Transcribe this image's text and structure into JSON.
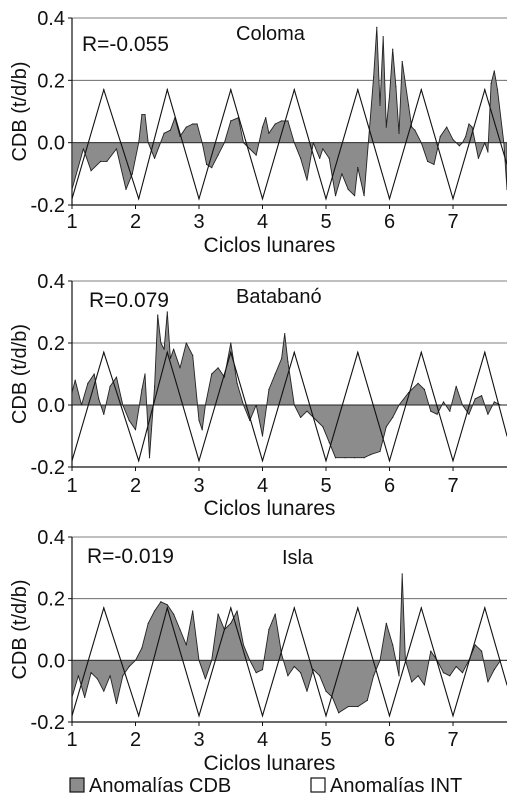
{
  "legend": {
    "cdb_label": "Anomalías CDB",
    "int_label": "Anomalías INT",
    "cdb_color": "#8c8c8c",
    "int_color": "#ffffff"
  },
  "chart_data": [
    {
      "type": "area",
      "title": "Coloma",
      "annotation": "R=-0.055",
      "xlabel": "Ciclos lunares",
      "ylabel": "CDB (t/d/b)",
      "xlim": [
        1,
        7.85
      ],
      "ylim": [
        -0.2,
        0.4
      ],
      "yticks": [
        "0.4",
        "0.2",
        "0.0",
        "-0.2"
      ],
      "xticks": [
        "1",
        "2",
        "3",
        "4",
        "5",
        "6",
        "7"
      ],
      "grid": true,
      "series": [
        {
          "role": "cdb",
          "x": [
            1.0,
            1.18,
            1.3,
            1.45,
            1.55,
            1.7,
            1.85,
            1.95,
            2.05,
            2.1,
            2.15,
            2.2,
            2.3,
            2.45,
            2.55,
            2.62,
            2.7,
            2.8,
            2.9,
            2.97,
            3.05,
            3.12,
            3.2,
            3.3,
            3.4,
            3.5,
            3.62,
            3.7,
            3.8,
            3.9,
            4.0,
            4.05,
            4.1,
            4.2,
            4.3,
            4.4,
            4.5,
            4.6,
            4.7,
            4.8,
            4.9,
            4.95,
            5.05,
            5.15,
            5.25,
            5.35,
            5.45,
            5.5,
            5.6,
            5.75,
            5.8,
            5.85,
            5.9,
            5.95,
            6.0,
            6.05,
            6.1,
            6.15,
            6.2,
            6.3,
            6.35,
            6.4,
            6.5,
            6.6,
            6.7,
            6.8,
            6.9,
            7.0,
            7.05,
            7.1,
            7.15,
            7.2,
            7.25,
            7.3,
            7.4,
            7.5,
            7.55,
            7.6,
            7.65,
            7.7,
            7.8,
            7.85
          ],
          "y": [
            -0.15,
            -0.02,
            -0.09,
            -0.06,
            -0.06,
            -0.02,
            -0.15,
            -0.1,
            0.0,
            0.09,
            0.09,
            0.0,
            -0.05,
            0.03,
            0.04,
            0.08,
            0.02,
            0.05,
            0.06,
            0.06,
            0.0,
            -0.07,
            -0.08,
            -0.04,
            0.0,
            0.07,
            0.08,
            0.0,
            -0.02,
            -0.04,
            0.05,
            0.08,
            0.03,
            0.06,
            0.07,
            0.07,
            0.0,
            -0.05,
            -0.12,
            0.0,
            -0.05,
            -0.02,
            -0.05,
            -0.17,
            -0.1,
            -0.15,
            -0.17,
            -0.08,
            -0.17,
            0.21,
            0.37,
            0.12,
            0.34,
            0.05,
            0.15,
            0.3,
            0.18,
            0.03,
            0.26,
            0.12,
            0.05,
            0.04,
            0.0,
            -0.06,
            -0.07,
            0.02,
            0.05,
            0.01,
            0.0,
            -0.01,
            0.0,
            0.02,
            0.06,
            0.05,
            -0.05,
            0.0,
            -0.03,
            0.19,
            0.23,
            0.17,
            0.0,
            -0.15
          ]
        },
        {
          "role": "int",
          "x": [
            1.0,
            1.5,
            2.05,
            2.5,
            3.0,
            3.5,
            4.0,
            4.5,
            5.0,
            5.5,
            6.0,
            6.5,
            7.0,
            7.5,
            7.85
          ],
          "y": [
            -0.18,
            0.17,
            -0.18,
            0.17,
            -0.18,
            0.17,
            -0.18,
            0.17,
            -0.18,
            0.17,
            -0.18,
            0.17,
            -0.18,
            0.17,
            -0.07
          ]
        }
      ]
    },
    {
      "type": "area",
      "title": "Batabanó",
      "annotation": "R=0.079",
      "xlabel": "Ciclos lunares",
      "ylabel": "CDB (t/d/b)",
      "xlim": [
        1,
        7.85
      ],
      "ylim": [
        -0.2,
        0.4
      ],
      "yticks": [
        "0.4",
        "0.2",
        "0.0",
        "-0.2"
      ],
      "xticks": [
        "1",
        "2",
        "3",
        "4",
        "5",
        "6",
        "7"
      ],
      "grid": true,
      "series": [
        {
          "role": "cdb",
          "x": [
            1.0,
            1.05,
            1.15,
            1.25,
            1.35,
            1.42,
            1.5,
            1.6,
            1.7,
            1.8,
            1.9,
            2.0,
            2.1,
            2.15,
            2.22,
            2.3,
            2.35,
            2.4,
            2.45,
            2.5,
            2.55,
            2.6,
            2.7,
            2.8,
            2.9,
            3.0,
            3.05,
            3.1,
            3.2,
            3.3,
            3.4,
            3.5,
            3.6,
            3.7,
            3.8,
            3.9,
            4.0,
            4.1,
            4.2,
            4.3,
            4.35,
            4.4,
            4.5,
            4.6,
            4.7,
            4.85,
            4.95,
            5.05,
            5.15,
            5.3,
            5.45,
            5.6,
            5.7,
            5.85,
            5.95,
            6.05,
            6.15,
            6.3,
            6.45,
            6.55,
            6.65,
            6.75,
            6.85,
            6.95,
            7.05,
            7.15,
            7.25,
            7.35,
            7.45,
            7.55,
            7.65,
            7.75,
            7.85
          ],
          "y": [
            0.04,
            0.08,
            0.0,
            0.07,
            0.1,
            0.02,
            -0.03,
            0.06,
            0.09,
            0.0,
            -0.05,
            -0.08,
            0.05,
            0.1,
            -0.17,
            0.06,
            0.29,
            0.2,
            0.18,
            0.3,
            0.15,
            0.18,
            0.12,
            0.2,
            0.16,
            -0.05,
            -0.08,
            0.0,
            0.1,
            0.12,
            0.09,
            0.2,
            0.07,
            0.0,
            -0.05,
            0.0,
            -0.1,
            0.05,
            0.1,
            0.15,
            0.23,
            0.14,
            0.0,
            -0.04,
            -0.02,
            -0.05,
            -0.07,
            -0.12,
            -0.17,
            -0.17,
            -0.17,
            -0.17,
            -0.16,
            -0.15,
            -0.07,
            -0.04,
            0.0,
            0.04,
            0.07,
            0.05,
            -0.02,
            -0.03,
            0.01,
            -0.02,
            0.06,
            0.0,
            -0.03,
            0.02,
            0.03,
            -0.03,
            0.01,
            0.0,
            0.0
          ]
        },
        {
          "role": "int",
          "x": [
            1.0,
            1.5,
            2.05,
            2.5,
            3.0,
            3.5,
            4.0,
            4.5,
            5.0,
            5.5,
            6.0,
            6.5,
            7.0,
            7.5,
            7.85
          ],
          "y": [
            -0.18,
            0.17,
            -0.18,
            0.17,
            -0.18,
            0.17,
            -0.18,
            0.17,
            -0.18,
            0.17,
            -0.18,
            0.17,
            -0.18,
            0.17,
            -0.1
          ]
        }
      ]
    },
    {
      "type": "area",
      "title": "Isla",
      "annotation": "R=-0.019",
      "xlabel": "Ciclos lunares",
      "ylabel": "CDB (t/d/b)",
      "xlim": [
        1,
        7.85
      ],
      "ylim": [
        -0.2,
        0.4
      ],
      "yticks": [
        "0.4",
        "0.2",
        "0.0",
        "-0.2"
      ],
      "xticks": [
        "1",
        "2",
        "3",
        "4",
        "5",
        "6",
        "7"
      ],
      "grid": true,
      "series": [
        {
          "role": "cdb",
          "x": [
            1.0,
            1.1,
            1.2,
            1.3,
            1.4,
            1.5,
            1.6,
            1.7,
            1.8,
            1.9,
            2.0,
            2.1,
            2.2,
            2.3,
            2.4,
            2.5,
            2.6,
            2.7,
            2.8,
            2.9,
            3.0,
            3.1,
            3.2,
            3.3,
            3.4,
            3.5,
            3.6,
            3.7,
            3.8,
            3.9,
            4.0,
            4.1,
            4.2,
            4.3,
            4.4,
            4.5,
            4.6,
            4.7,
            4.8,
            4.9,
            5.0,
            5.1,
            5.2,
            5.35,
            5.5,
            5.65,
            5.75,
            5.85,
            5.95,
            6.05,
            6.15,
            6.2,
            6.25,
            6.35,
            6.45,
            6.55,
            6.65,
            6.75,
            6.85,
            6.95,
            7.05,
            7.15,
            7.25,
            7.35,
            7.45,
            7.55,
            7.65,
            7.75,
            7.85
          ],
          "y": [
            -0.12,
            -0.05,
            -0.12,
            -0.04,
            -0.06,
            -0.1,
            -0.05,
            -0.14,
            -0.05,
            -0.02,
            0.0,
            0.04,
            0.12,
            0.16,
            0.19,
            0.18,
            0.15,
            0.1,
            0.05,
            0.16,
            0.0,
            -0.06,
            0.0,
            0.15,
            0.1,
            0.12,
            0.16,
            0.05,
            0.0,
            -0.04,
            -0.03,
            0.1,
            0.15,
            0.02,
            -0.05,
            -0.02,
            -0.04,
            -0.1,
            -0.03,
            -0.05,
            -0.1,
            -0.12,
            -0.17,
            -0.15,
            -0.15,
            -0.13,
            -0.05,
            0.0,
            0.12,
            0.05,
            -0.05,
            0.28,
            0.0,
            -0.07,
            -0.05,
            -0.08,
            0.03,
            0.0,
            -0.04,
            -0.05,
            -0.02,
            -0.04,
            0.0,
            0.05,
            0.03,
            -0.07,
            -0.03,
            0.0,
            0.0
          ]
        },
        {
          "role": "int",
          "x": [
            1.0,
            1.5,
            2.05,
            2.5,
            3.0,
            3.5,
            4.0,
            4.5,
            5.0,
            5.5,
            6.0,
            6.5,
            7.0,
            7.5,
            7.85
          ],
          "y": [
            -0.18,
            0.17,
            -0.18,
            0.17,
            -0.18,
            0.17,
            -0.18,
            0.17,
            -0.18,
            0.17,
            -0.18,
            0.17,
            -0.18,
            0.17,
            -0.08
          ]
        }
      ]
    }
  ]
}
